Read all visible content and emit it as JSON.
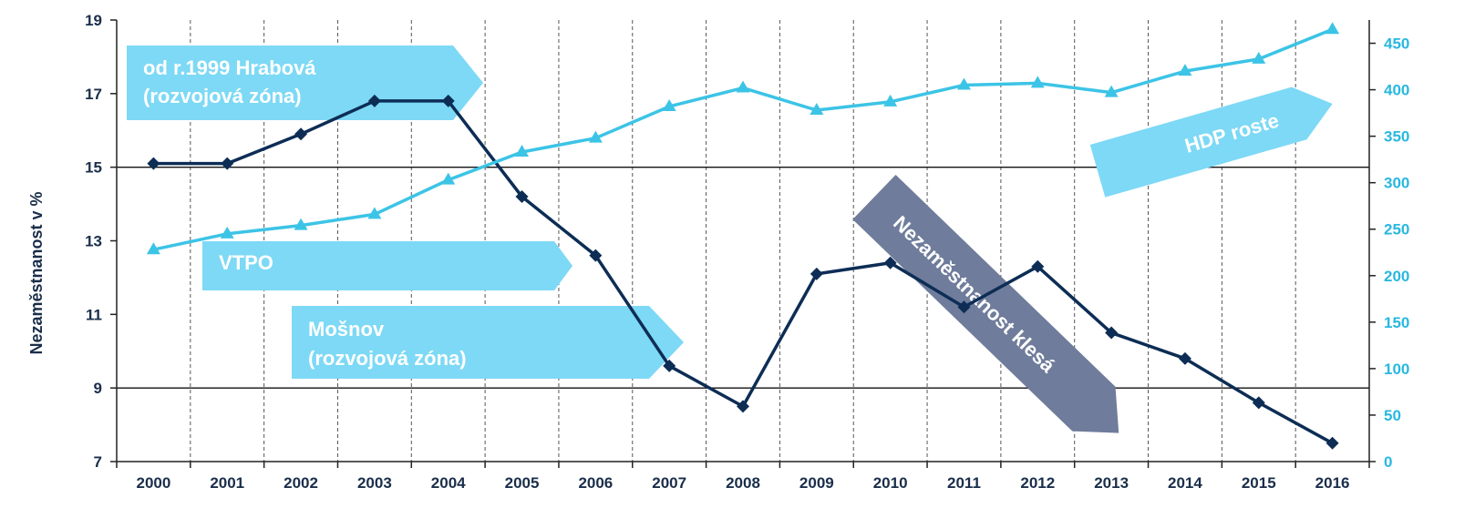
{
  "chart_data": {
    "type": "line",
    "ylabel": "Nezaměstnanost v %",
    "categories": [
      "2000",
      "2001",
      "2002",
      "2003",
      "2004",
      "2005",
      "2006",
      "2007",
      "2008",
      "2009",
      "2010",
      "2011",
      "2012",
      "2013",
      "2014",
      "2015",
      "2016"
    ],
    "left_axis": {
      "ylim": [
        7,
        19
      ],
      "ticks": [
        "7",
        "9",
        "11",
        "13",
        "15",
        "17",
        "19"
      ]
    },
    "right_axis": {
      "ylim": [
        0,
        475
      ],
      "ticks": [
        "0",
        "50",
        "100",
        "150",
        "200",
        "250",
        "300",
        "350",
        "400",
        "450"
      ]
    },
    "grid": "horizontal solid at 9 and 15; vertical dashed between years",
    "series": [
      {
        "axis": "left",
        "color": "#0d2d55",
        "marker": "diamond",
        "values": [
          15.1,
          15.1,
          15.9,
          16.8,
          16.8,
          14.2,
          12.6,
          9.6,
          8.5,
          12.1,
          12.4,
          11.2,
          12.3,
          10.5,
          9.8,
          8.6,
          7.5
        ]
      },
      {
        "axis": "right",
        "color": "#3cc4e6",
        "marker": "triangle",
        "values": [
          228,
          245,
          254,
          266,
          303,
          333,
          348,
          382,
          402,
          378,
          387,
          405,
          407,
          397,
          420,
          433,
          465
        ]
      }
    ],
    "annotations": [
      {
        "lines": [
          "od r.1999 Hrabová",
          "(rozvojová zóna)"
        ],
        "color": "#7dd9f5"
      },
      {
        "lines": [
          "VTPO"
        ],
        "color": "#7dd9f5"
      },
      {
        "lines": [
          "Mošnov",
          "(rozvojová zóna)"
        ],
        "color": "#7dd9f5"
      },
      {
        "lines": [
          "Nezaměstnanost klesá"
        ],
        "color": "#6f7c9b"
      },
      {
        "lines": [
          "HDP roste"
        ],
        "color": "#7dd9f5"
      }
    ]
  }
}
